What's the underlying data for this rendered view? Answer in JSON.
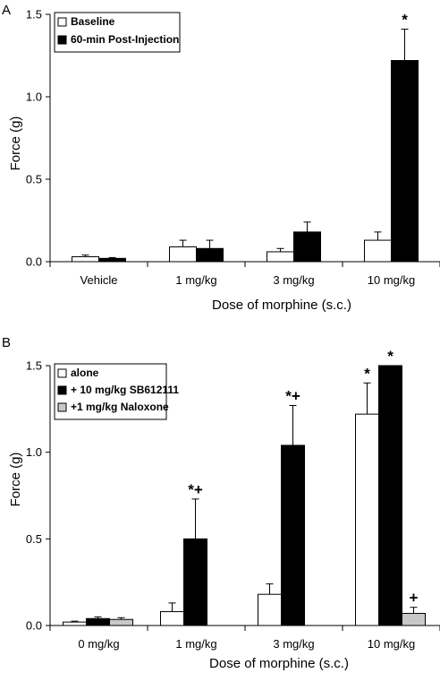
{
  "chart_data": [
    {
      "panel": "A",
      "type": "bar",
      "categories": [
        "Vehicle",
        "1 mg/kg",
        "3 mg/kg",
        "10 mg/kg"
      ],
      "xlabel": "Dose of morphine (s.c.)",
      "ylabel": "Force (g)",
      "ylim": [
        0,
        1.5
      ],
      "yticks": [
        "0.0",
        "0.5",
        "1.0",
        "1.5"
      ],
      "legend_position": "top-left",
      "grid": false,
      "series": [
        {
          "name": "Baseline",
          "color": "#ffffff",
          "values": [
            0.03,
            0.09,
            0.06,
            0.13
          ],
          "errors": [
            0.01,
            0.04,
            0.02,
            0.05
          ],
          "marks": [
            "",
            "",
            "",
            ""
          ]
        },
        {
          "name": "60-min Post-Injection",
          "color": "#000000",
          "values": [
            0.02,
            0.08,
            0.18,
            1.22
          ],
          "errors": [
            0.005,
            0.05,
            0.06,
            0.19
          ],
          "marks": [
            "",
            "",
            "",
            "*"
          ]
        }
      ]
    },
    {
      "panel": "B",
      "type": "bar",
      "categories": [
        "0 mg/kg",
        "1 mg/kg",
        "3 mg/kg",
        "10 mg/kg"
      ],
      "xlabel": "Dose of morphine (s.c.)",
      "ylabel": "Force (g)",
      "ylim": [
        0,
        1.5
      ],
      "yticks": [
        "0.0",
        "0.5",
        "1.0",
        "1.5"
      ],
      "legend_position": "top-left",
      "grid": false,
      "series": [
        {
          "name": "alone",
          "color": "#ffffff",
          "values": [
            0.02,
            0.08,
            0.18,
            1.22
          ],
          "errors": [
            0.005,
            0.05,
            0.06,
            0.18
          ],
          "marks": [
            "",
            "",
            "",
            "*"
          ]
        },
        {
          "name": "+ 10 mg/kg SB612111",
          "color": "#000000",
          "values": [
            0.04,
            0.5,
            1.04,
            1.5
          ],
          "errors": [
            0.01,
            0.23,
            0.23,
            0.0
          ],
          "marks": [
            "",
            "*+",
            "*+",
            "*"
          ]
        },
        {
          "name": "+1 mg/kg Naloxone",
          "color": "#c8c8c8",
          "values": [
            0.035,
            null,
            null,
            0.07
          ],
          "errors": [
            0.01,
            null,
            null,
            0.035
          ],
          "marks": [
            "",
            "",
            "",
            "+"
          ]
        }
      ]
    }
  ]
}
